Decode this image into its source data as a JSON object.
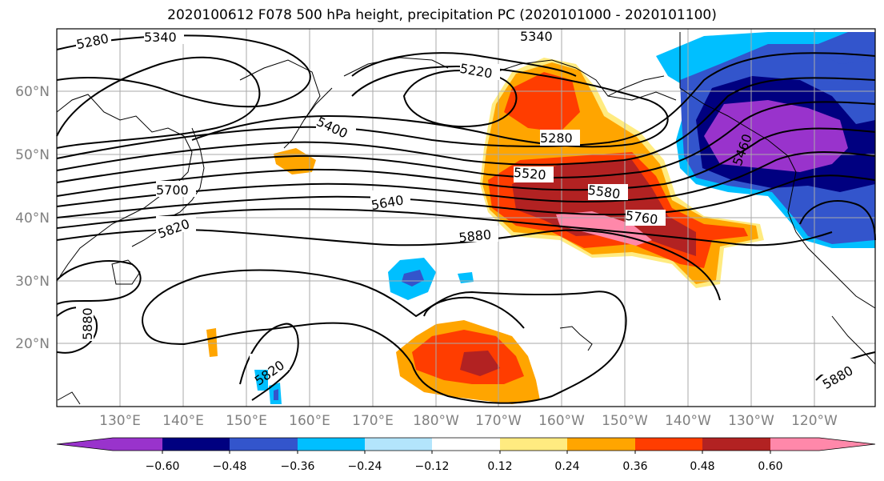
{
  "title": "2020100612 F078 500 hPa height, precipitation PC (2020101000 - 2020101100)",
  "map": {
    "lon_labels": [
      "130°E",
      "140°E",
      "150°E",
      "160°E",
      "170°E",
      "180°W",
      "170°W",
      "160°W",
      "150°W",
      "140°W",
      "130°W",
      "120°W"
    ],
    "lat_labels": [
      "60°N",
      "50°N",
      "40°N",
      "30°N",
      "20°N"
    ],
    "contour_labels": [
      "5280",
      "5340",
      "5340",
      "5220",
      "5400",
      "5280",
      "5520",
      "5580",
      "5640",
      "5700",
      "5760",
      "5820",
      "5880",
      "5880",
      "5820",
      "5880",
      "5460"
    ]
  },
  "colorbar": {
    "tick_labels": [
      "−0.60",
      "−0.48",
      "−0.36",
      "−0.24",
      "−0.12",
      "0.12",
      "0.24",
      "0.36",
      "0.48",
      "0.60"
    ],
    "colors": [
      "#9933cc",
      "#000080",
      "#3355cc",
      "#00bfff",
      "#b3e5fc",
      "#ffffff",
      "#ffeb80",
      "#ffa500",
      "#ff3d00",
      "#b22222",
      "#ff88aa"
    ]
  }
}
